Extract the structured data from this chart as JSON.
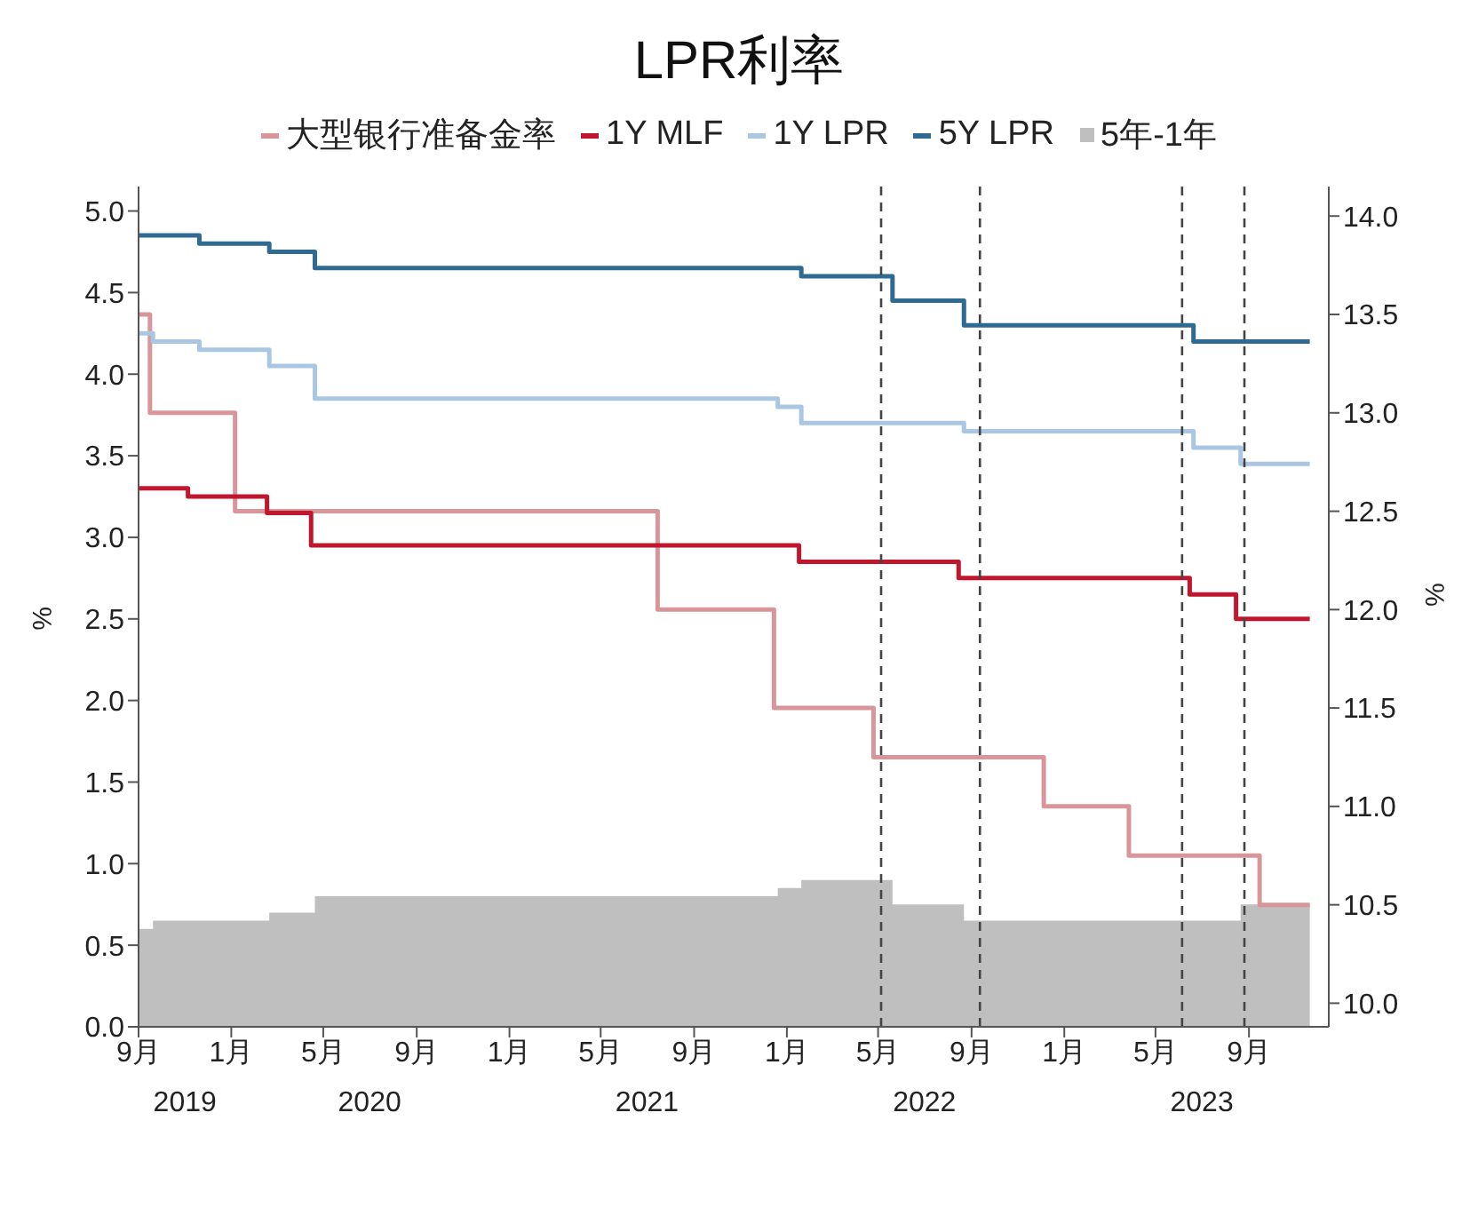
{
  "chart_data": {
    "type": "step",
    "title": "LPR利率",
    "ylabel": "%",
    "y2label": "%",
    "xlim": [
      "2019-09-01",
      "2023-12-15"
    ],
    "xticks": [
      {
        "value": "2019-09",
        "label": "9月"
      },
      {
        "value": "2020-01",
        "label": "1月"
      },
      {
        "value": "2020-05",
        "label": "5月"
      },
      {
        "value": "2020-09",
        "label": "9月"
      },
      {
        "value": "2021-01",
        "label": "1月"
      },
      {
        "value": "2021-05",
        "label": "5月"
      },
      {
        "value": "2021-09",
        "label": "9月"
      },
      {
        "value": "2022-01",
        "label": "1月"
      },
      {
        "value": "2022-05",
        "label": "5月"
      },
      {
        "value": "2022-09",
        "label": "9月"
      },
      {
        "value": "2023-01",
        "label": "1月"
      },
      {
        "value": "2023-05",
        "label": "5月"
      },
      {
        "value": "2023-09",
        "label": "9月"
      }
    ],
    "x2lim": [
      "2019-09-01",
      "2023-12-15"
    ],
    "x2ticks": [
      {
        "value": "2019-11",
        "label": "2019"
      },
      {
        "value": "2020-07",
        "label": "2020"
      },
      {
        "value": "2021-07",
        "label": "2021"
      },
      {
        "value": "2022-07",
        "label": "2022"
      },
      {
        "value": "2023-07",
        "label": "2023"
      }
    ],
    "ylim": [
      0,
      5.15
    ],
    "yticks": [
      {
        "value": 0,
        "label": "0.0"
      },
      {
        "value": 0.5,
        "label": "0.5"
      },
      {
        "value": 1,
        "label": "1.0"
      },
      {
        "value": 1.5,
        "label": "1.5"
      },
      {
        "value": 2,
        "label": "2.0"
      },
      {
        "value": 2.5,
        "label": "2.5"
      },
      {
        "value": 3,
        "label": "3.0"
      },
      {
        "value": 3.5,
        "label": "3.5"
      },
      {
        "value": 4,
        "label": "4.0"
      },
      {
        "value": 4.5,
        "label": "4.5"
      },
      {
        "value": 5,
        "label": "5.0"
      }
    ],
    "y2lim": [
      9.88,
      14.15
    ],
    "y2ticks": [
      {
        "value": 10,
        "label": "10.0"
      },
      {
        "value": 10.5,
        "label": "10.5"
      },
      {
        "value": 11,
        "label": "11.0"
      },
      {
        "value": 11.5,
        "label": "11.5"
      },
      {
        "value": 12,
        "label": "12.0"
      },
      {
        "value": 12.5,
        "label": "12.5"
      },
      {
        "value": 13,
        "label": "13.0"
      },
      {
        "value": 13.5,
        "label": "13.5"
      },
      {
        "value": 14,
        "label": "14.0"
      }
    ],
    "series": [
      {
        "name": "大型银行准备金率",
        "color": "#d9969a",
        "axis": "y2",
        "x": [
          "2019-09-01",
          "2019-09-16",
          "2020-01-06",
          "2021-07-15",
          "2021-12-15",
          "2022-04-25",
          "2022-12-05",
          "2023-03-27",
          "2023-09-15",
          "2023-11-20"
        ],
        "values": [
          13.5,
          13.0,
          12.5,
          12.0,
          11.5,
          11.25,
          11.0,
          10.75,
          10.5,
          10.5
        ]
      },
      {
        "name": "1Y MLF",
        "color": "#c0172e",
        "x": [
          "2019-09-01",
          "2019-11-05",
          "2020-02-17",
          "2020-04-15",
          "2022-01-17",
          "2022-08-15",
          "2023-06-15",
          "2023-08-15",
          "2023-11-20"
        ],
        "values": [
          3.3,
          3.25,
          3.15,
          2.95,
          2.85,
          2.75,
          2.65,
          2.5,
          2.5
        ]
      },
      {
        "name": "1Y LPR",
        "color": "#a9c7e3",
        "x": [
          "2019-09-01",
          "2019-09-20",
          "2019-11-20",
          "2020-02-20",
          "2020-04-20",
          "2021-12-20",
          "2022-01-20",
          "2022-08-22",
          "2023-06-20",
          "2023-08-21",
          "2023-11-20"
        ],
        "values": [
          4.25,
          4.2,
          4.15,
          4.05,
          3.85,
          3.8,
          3.7,
          3.65,
          3.55,
          3.45,
          3.45
        ]
      },
      {
        "name": "5Y LPR",
        "color": "#2e6a92",
        "x": [
          "2019-09-01",
          "2019-11-20",
          "2020-02-20",
          "2020-04-20",
          "2022-01-20",
          "2022-05-20",
          "2022-08-22",
          "2023-06-20",
          "2023-11-20"
        ],
        "values": [
          4.85,
          4.8,
          4.75,
          4.65,
          4.6,
          4.45,
          4.3,
          4.2,
          4.2
        ]
      },
      {
        "name": "5年-1年",
        "color": "#bfbfbf",
        "type": "area",
        "x": [
          "2019-09-01",
          "2019-09-20",
          "2020-02-20",
          "2020-04-20",
          "2021-12-20",
          "2022-01-20",
          "2022-05-20",
          "2022-08-22",
          "2023-08-21",
          "2023-11-20"
        ],
        "values": [
          0.6,
          0.65,
          0.7,
          0.8,
          0.85,
          0.9,
          0.75,
          0.65,
          0.75,
          0.75
        ]
      }
    ],
    "ref_lines": [
      {
        "axis": "x",
        "value": "2022-05-05",
        "color": "#444444",
        "line_style": "dashed"
      },
      {
        "axis": "x",
        "value": "2022-09-12",
        "color": "#444444",
        "line_style": "dashed"
      },
      {
        "axis": "x",
        "value": "2023-06-05",
        "color": "#444444",
        "line_style": "dashed"
      },
      {
        "axis": "x",
        "value": "2023-08-26",
        "color": "#444444",
        "line_style": "dashed"
      }
    ],
    "legend": "top",
    "grid": false
  }
}
